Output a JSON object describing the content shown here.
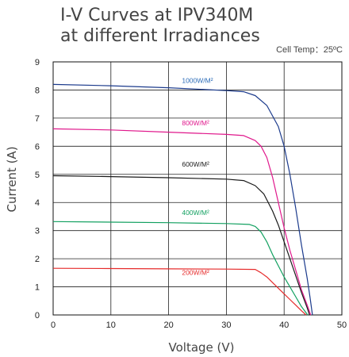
{
  "chart_data": {
    "type": "line",
    "title": [
      "I-V Curves at IPV340M",
      "at different Irradiances"
    ],
    "condition": "Cell Temp：25ºC",
    "xlabel": "Voltage (V)",
    "ylabel": "Current (A)",
    "xlim": [
      0,
      50
    ],
    "ylim": [
      0,
      9
    ],
    "xticks": [
      0,
      10,
      20,
      30,
      40,
      50
    ],
    "yticks": [
      0,
      1,
      2,
      3,
      4,
      5,
      6,
      7,
      8,
      9
    ],
    "grid": true,
    "series": [
      {
        "name": "1000W/M²",
        "color": "#1b3a8c",
        "label_color": "#2b6cb8",
        "points": [
          [
            0,
            8.2
          ],
          [
            10,
            8.15
          ],
          [
            20,
            8.08
          ],
          [
            30,
            7.98
          ],
          [
            33,
            7.94
          ],
          [
            35,
            7.8
          ],
          [
            37,
            7.45
          ],
          [
            39,
            6.7
          ],
          [
            40,
            6.0
          ],
          [
            41,
            5.0
          ],
          [
            42,
            3.8
          ],
          [
            43,
            2.5
          ],
          [
            44,
            1.3
          ],
          [
            44.5,
            0.6
          ],
          [
            44.9,
            0
          ]
        ]
      },
      {
        "name": "800W/M²",
        "color": "#e0188c",
        "label_color": "#e0188c",
        "points": [
          [
            0,
            6.62
          ],
          [
            10,
            6.58
          ],
          [
            20,
            6.5
          ],
          [
            30,
            6.42
          ],
          [
            33,
            6.38
          ],
          [
            35,
            6.2
          ],
          [
            36,
            6.0
          ],
          [
            37,
            5.6
          ],
          [
            38,
            4.9
          ],
          [
            39,
            4.0
          ],
          [
            40,
            3.1
          ],
          [
            41,
            2.3
          ],
          [
            42,
            1.6
          ],
          [
            43,
            0.9
          ],
          [
            44,
            0.35
          ],
          [
            44.6,
            0
          ]
        ]
      },
      {
        "name": "600W/M²",
        "color": "#1a1a1a",
        "label_color": "#1a1a1a",
        "points": [
          [
            0,
            4.95
          ],
          [
            10,
            4.92
          ],
          [
            20,
            4.88
          ],
          [
            30,
            4.83
          ],
          [
            33,
            4.78
          ],
          [
            35,
            4.6
          ],
          [
            36.5,
            4.3
          ],
          [
            38,
            3.7
          ],
          [
            39,
            3.2
          ],
          [
            40,
            2.6
          ],
          [
            41,
            2.0
          ],
          [
            42,
            1.4
          ],
          [
            43,
            0.8
          ],
          [
            44,
            0.25
          ],
          [
            44.4,
            0
          ]
        ]
      },
      {
        "name": "400W/M²",
        "color": "#12a060",
        "label_color": "#12a060",
        "points": [
          [
            0,
            3.32
          ],
          [
            10,
            3.3
          ],
          [
            20,
            3.28
          ],
          [
            30,
            3.25
          ],
          [
            34,
            3.22
          ],
          [
            35,
            3.15
          ],
          [
            36,
            2.95
          ],
          [
            37,
            2.6
          ],
          [
            38,
            2.15
          ],
          [
            39,
            1.75
          ],
          [
            40,
            1.35
          ],
          [
            41,
            1.0
          ],
          [
            42,
            0.65
          ],
          [
            43,
            0.3
          ],
          [
            44.1,
            0
          ]
        ]
      },
      {
        "name": "200W/M²",
        "color": "#e62b2b",
        "label_color": "#e62b2b",
        "points": [
          [
            0,
            1.66
          ],
          [
            10,
            1.65
          ],
          [
            20,
            1.64
          ],
          [
            30,
            1.63
          ],
          [
            35,
            1.62
          ],
          [
            36,
            1.5
          ],
          [
            37,
            1.35
          ],
          [
            38,
            1.15
          ],
          [
            39,
            0.95
          ],
          [
            40,
            0.75
          ],
          [
            41,
            0.55
          ],
          [
            42,
            0.35
          ],
          [
            43,
            0.15
          ],
          [
            43.8,
            0
          ]
        ]
      }
    ],
    "series_labels": [
      {
        "series": 0,
        "text": "1000W/M²",
        "x": 22.3,
        "y": 8.25
      },
      {
        "series": 1,
        "text": "800W/M²",
        "x": 22.3,
        "y": 6.75
      },
      {
        "series": 2,
        "text": "600W/M²",
        "x": 22.3,
        "y": 5.28
      },
      {
        "series": 3,
        "text": "400W/M²",
        "x": 22.3,
        "y": 3.55
      },
      {
        "series": 4,
        "text": "200W/M²",
        "x": 22.3,
        "y": 1.43
      }
    ]
  }
}
